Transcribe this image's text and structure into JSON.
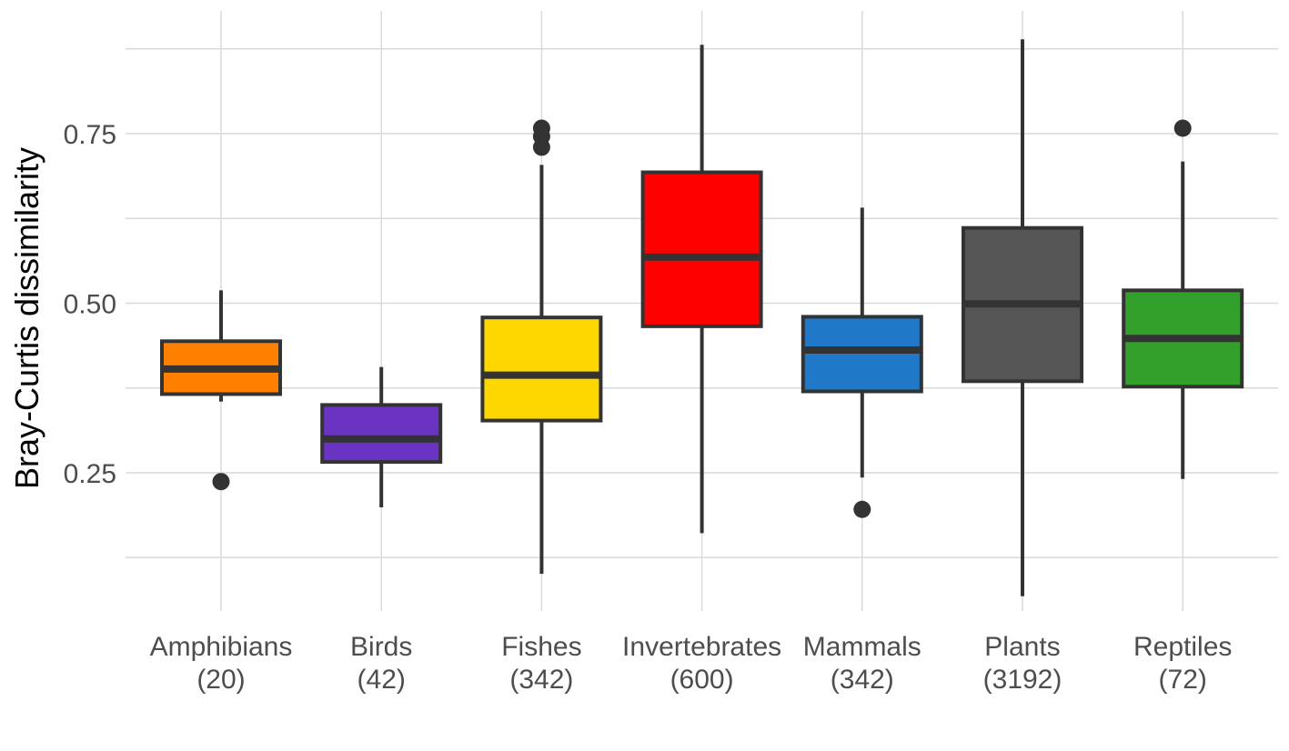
{
  "chart_data": {
    "type": "box",
    "title": "",
    "xlabel": "",
    "ylabel": "Bray-Curtis dissimilarity",
    "ylim": [
      0.04,
      0.92
    ],
    "yticks": [
      0.25,
      0.5,
      0.75
    ],
    "ytick_labels": [
      "0.25",
      "0.50",
      "0.75"
    ],
    "grid": true,
    "legend": "none",
    "categories": [
      {
        "label": "Amphibians",
        "n": "(20)",
        "color": "#FF7F00",
        "whisker_low": 0.355,
        "q1": 0.366,
        "median": 0.403,
        "q3": 0.444,
        "whisker_high": 0.519,
        "outliers": [
          0.237
        ]
      },
      {
        "label": "Birds",
        "n": "(42)",
        "color": "#6A33C2",
        "whisker_low": 0.199,
        "q1": 0.266,
        "median": 0.3,
        "q3": 0.35,
        "whisker_high": 0.406,
        "outliers": []
      },
      {
        "label": "Fishes",
        "n": "(342)",
        "color": "#FFD700",
        "whisker_low": 0.101,
        "q1": 0.327,
        "median": 0.394,
        "q3": 0.479,
        "whisker_high": 0.704,
        "outliers": [
          0.73,
          0.746,
          0.758
        ]
      },
      {
        "label": "Invertebrates",
        "n": "(600)",
        "color": "#FF0000",
        "whisker_low": 0.161,
        "q1": 0.466,
        "median": 0.568,
        "q3": 0.693,
        "whisker_high": 0.881,
        "outliers": []
      },
      {
        "label": "Mammals",
        "n": "(342)",
        "color": "#1F78C8",
        "whisker_low": 0.243,
        "q1": 0.37,
        "median": 0.431,
        "q3": 0.48,
        "whisker_high": 0.641,
        "outliers": [
          0.196
        ]
      },
      {
        "label": "Plants",
        "n": "(3192)",
        "color": "#555555",
        "whisker_low": 0.068,
        "q1": 0.385,
        "median": 0.499,
        "q3": 0.611,
        "whisker_high": 0.889,
        "outliers": []
      },
      {
        "label": "Reptiles",
        "n": "(72)",
        "color": "#33A02C",
        "whisker_low": 0.241,
        "q1": 0.377,
        "median": 0.448,
        "q3": 0.519,
        "whisker_high": 0.709,
        "outliers": [
          0.758
        ]
      }
    ],
    "colors": {
      "grid": "#D9D9D9",
      "outline": "#333333",
      "tick_text": "#4D4D4D"
    }
  }
}
